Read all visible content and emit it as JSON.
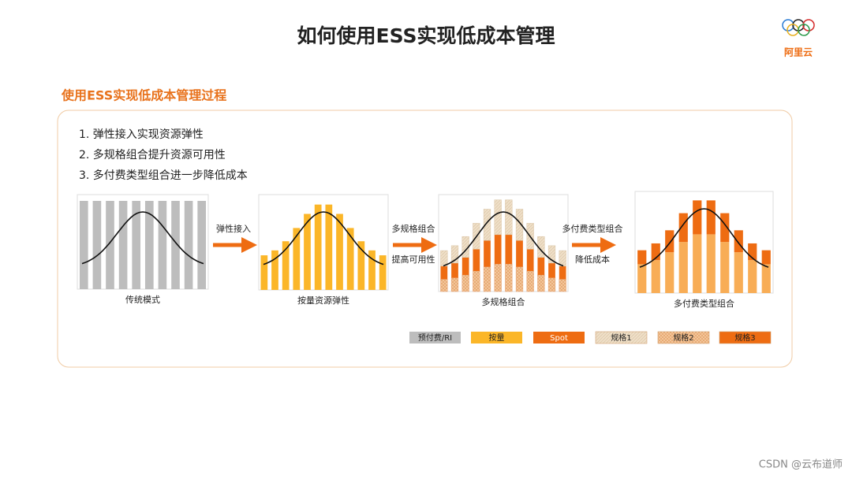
{
  "header": {
    "title": "如何使用ESS实现低成本管理",
    "logo": "阿里云"
  },
  "subtitle": "使用ESS实现低成本管理过程",
  "steps": [
    "1.  弹性接入实现资源弹性",
    "2.  多规格组合提升资源可用性",
    "3.  多付费类型组合进一步降低成本"
  ],
  "panels": [
    "传统模式",
    "按量资源弹性",
    "多规格组合",
    "多付费类型组合"
  ],
  "arrows": [
    [
      "弹性接入"
    ],
    [
      "多规格组合",
      "提高可用性"
    ],
    [
      "多付费类型组合",
      "降低成本"
    ]
  ],
  "legend": [
    "预付费/RI",
    "按量",
    "Spot",
    "规格1",
    "规格2",
    "规格3"
  ],
  "watermark": "CSDN @云布道师"
}
